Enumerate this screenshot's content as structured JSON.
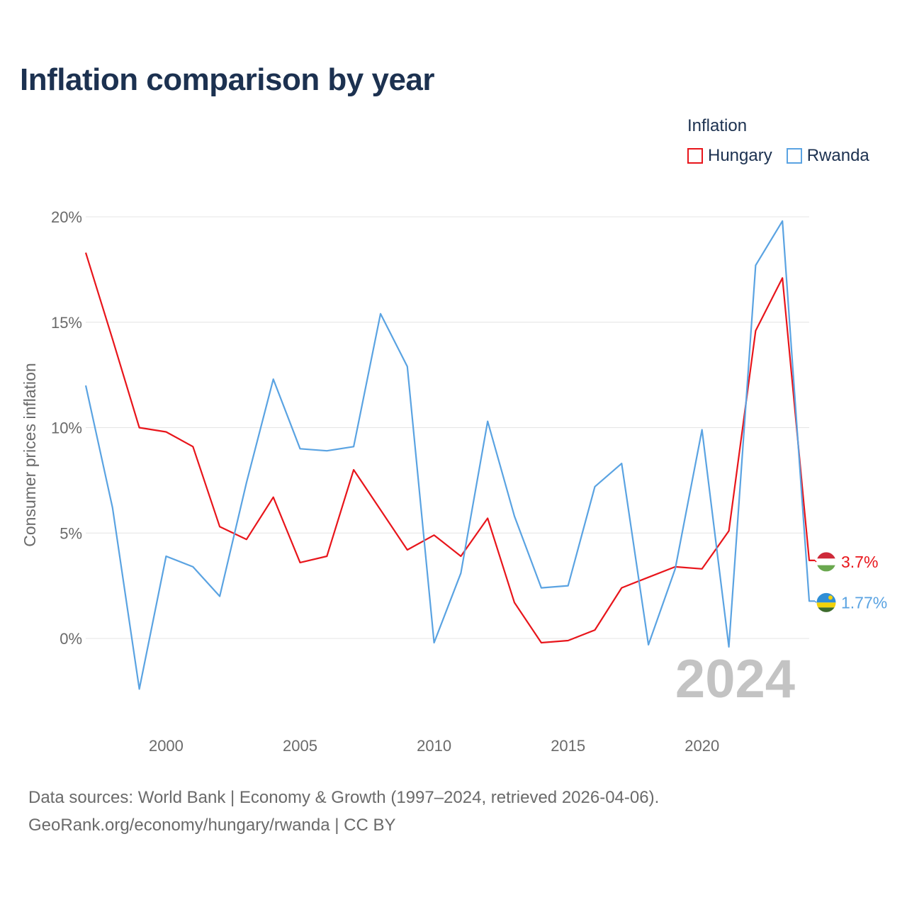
{
  "title": "Inflation comparison by year",
  "legend": {
    "title": "Inflation",
    "items": [
      {
        "label": "Hungary",
        "color": "#e8151b"
      },
      {
        "label": "Rwanda",
        "color": "#5aa3e2"
      }
    ]
  },
  "source": {
    "line1": "Data sources: World Bank | Economy & Growth (1997–2024, retrieved 2026-04-06).",
    "line2": "GeoRank.org/economy/hungary/rwanda | CC BY"
  },
  "chart_data": {
    "type": "line",
    "title": "Inflation comparison by year",
    "xlabel": "",
    "ylabel": "Consumer prices inflation",
    "x": [
      1997,
      1998,
      1999,
      2000,
      2001,
      2002,
      2003,
      2004,
      2005,
      2006,
      2007,
      2008,
      2009,
      2010,
      2011,
      2012,
      2013,
      2014,
      2015,
      2016,
      2017,
      2018,
      2019,
      2020,
      2021,
      2022,
      2023,
      2024
    ],
    "xlim": [
      1997,
      2024
    ],
    "ylim": [
      -2.5,
      20
    ],
    "yticks": [
      0,
      5,
      10,
      15,
      20
    ],
    "ytick_labels": [
      "0%",
      "5%",
      "10%",
      "15%",
      "20%"
    ],
    "xticks": [
      2000,
      2005,
      2010,
      2015,
      2020
    ],
    "xtick_labels": [
      "2000",
      "2005",
      "2010",
      "2015",
      "2020"
    ],
    "grid": true,
    "legend_position": "top-right",
    "watermark": "2024",
    "series": [
      {
        "name": "Hungary",
        "color": "#e8151b",
        "end_label": "3.7%",
        "values": [
          18.3,
          14.2,
          10.0,
          9.8,
          9.1,
          5.3,
          4.7,
          6.7,
          3.6,
          3.9,
          8.0,
          6.1,
          4.2,
          4.9,
          3.9,
          5.7,
          1.7,
          -0.2,
          -0.1,
          0.4,
          2.4,
          2.9,
          3.4,
          3.3,
          5.1,
          14.6,
          17.1,
          3.7
        ]
      },
      {
        "name": "Rwanda",
        "color": "#5aa3e2",
        "end_label": "1.77%",
        "values": [
          12.0,
          6.2,
          -2.4,
          3.9,
          3.4,
          2.0,
          7.4,
          12.3,
          9.0,
          8.9,
          9.1,
          15.4,
          12.9,
          -0.2,
          3.1,
          10.3,
          5.8,
          2.4,
          2.5,
          7.2,
          8.3,
          -0.3,
          3.3,
          9.9,
          -0.4,
          17.7,
          19.8,
          1.77
        ]
      }
    ]
  }
}
